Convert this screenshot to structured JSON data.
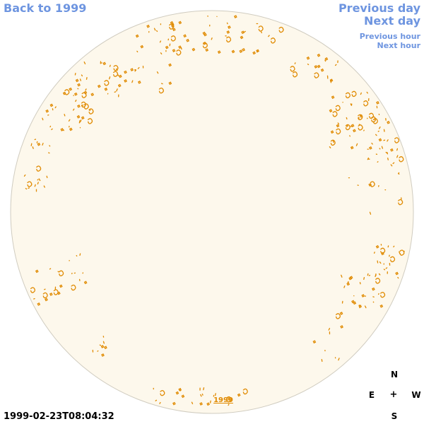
{
  "nav": {
    "back": "Back to 1999",
    "prev_day": "Previous day",
    "next_day": "Next day",
    "prev_hour": "Previous hour",
    "next_hour": "Next hour"
  },
  "timestamp": "1999-02-23T08:04:32",
  "year_link": "1999",
  "compass": {
    "n": "N",
    "e": "E",
    "w": "W",
    "s": "S",
    "center": "+"
  },
  "colors": {
    "link": "#6e95e0",
    "disk_fill": "#fdf8ec",
    "disk_stroke": "#d0ccc0",
    "spot": "#e08a00"
  }
}
